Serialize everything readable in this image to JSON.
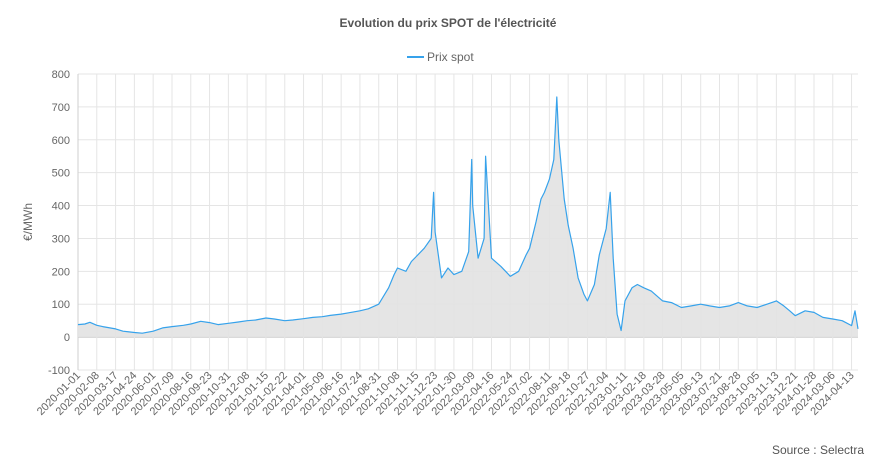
{
  "chart_data": {
    "type": "area",
    "title": "Evolution du prix SPOT de l'électricité",
    "ylabel": "€/MWh",
    "xlabel": "",
    "ylim": [
      -100,
      800
    ],
    "yticks": [
      -100,
      0,
      100,
      200,
      300,
      400,
      500,
      600,
      700,
      800
    ],
    "grid": true,
    "legend": "top-center",
    "source": "Source : Selectra",
    "xlim": [
      "2020-01-01",
      "2024-04-26"
    ],
    "x_tick_labels": [
      "2020-01-01",
      "2020-02-08",
      "2020-03-17",
      "2020-04-24",
      "2020-06-01",
      "2020-07-09",
      "2020-08-16",
      "2020-09-23",
      "2020-10-31",
      "2020-12-08",
      "2021-01-15",
      "2021-02-22",
      "2021-04-01",
      "2021-05-09",
      "2021-06-16",
      "2021-07-24",
      "2021-08-31",
      "2021-10-08",
      "2021-11-15",
      "2021-12-23",
      "2022-01-30",
      "2022-03-09",
      "2022-04-16",
      "2022-05-24",
      "2022-07-02",
      "2022-08-11",
      "2022-09-18",
      "2022-10-27",
      "2022-12-04",
      "2023-01-11",
      "2023-02-18",
      "2023-03-28",
      "2023-05-05",
      "2023-06-13",
      "2023-07-21",
      "2023-08-28",
      "2023-10-05",
      "2023-11-13",
      "2023-12-21",
      "2024-01-28",
      "2024-03-06",
      "2024-04-13"
    ],
    "series": [
      {
        "name": "Prix spot",
        "color": "#36a2eb",
        "fill": "#e2e2e2",
        "points": [
          [
            "2020-01-01",
            38
          ],
          [
            "2020-01-15",
            40
          ],
          [
            "2020-01-25",
            45
          ],
          [
            "2020-02-08",
            36
          ],
          [
            "2020-02-20",
            32
          ],
          [
            "2020-03-17",
            25
          ],
          [
            "2020-04-01",
            18
          ],
          [
            "2020-04-24",
            14
          ],
          [
            "2020-05-10",
            12
          ],
          [
            "2020-06-01",
            18
          ],
          [
            "2020-06-20",
            28
          ],
          [
            "2020-07-09",
            32
          ],
          [
            "2020-08-01",
            36
          ],
          [
            "2020-08-16",
            40
          ],
          [
            "2020-09-05",
            48
          ],
          [
            "2020-09-23",
            44
          ],
          [
            "2020-10-10",
            38
          ],
          [
            "2020-10-31",
            42
          ],
          [
            "2020-11-20",
            46
          ],
          [
            "2020-12-08",
            50
          ],
          [
            "2020-12-25",
            52
          ],
          [
            "2021-01-15",
            58
          ],
          [
            "2021-02-01",
            55
          ],
          [
            "2021-02-22",
            50
          ],
          [
            "2021-03-10",
            52
          ],
          [
            "2021-04-01",
            56
          ],
          [
            "2021-04-20",
            60
          ],
          [
            "2021-05-09",
            62
          ],
          [
            "2021-05-25",
            66
          ],
          [
            "2021-06-16",
            70
          ],
          [
            "2021-07-01",
            74
          ],
          [
            "2021-07-24",
            80
          ],
          [
            "2021-08-10",
            86
          ],
          [
            "2021-08-31",
            100
          ],
          [
            "2021-09-20",
            150
          ],
          [
            "2021-10-01",
            190
          ],
          [
            "2021-10-08",
            210
          ],
          [
            "2021-10-25",
            200
          ],
          [
            "2021-11-05",
            230
          ],
          [
            "2021-11-15",
            245
          ],
          [
            "2021-12-01",
            270
          ],
          [
            "2021-12-15",
            300
          ],
          [
            "2021-12-20",
            440
          ],
          [
            "2021-12-23",
            320
          ],
          [
            "2022-01-05",
            180
          ],
          [
            "2022-01-18",
            210
          ],
          [
            "2022-01-30",
            190
          ],
          [
            "2022-02-15",
            200
          ],
          [
            "2022-03-01",
            260
          ],
          [
            "2022-03-07",
            540
          ],
          [
            "2022-03-09",
            400
          ],
          [
            "2022-03-20",
            240
          ],
          [
            "2022-04-01",
            300
          ],
          [
            "2022-04-04",
            550
          ],
          [
            "2022-04-16",
            240
          ],
          [
            "2022-05-05",
            215
          ],
          [
            "2022-05-24",
            185
          ],
          [
            "2022-06-10",
            200
          ],
          [
            "2022-06-25",
            250
          ],
          [
            "2022-07-02",
            270
          ],
          [
            "2022-07-15",
            350
          ],
          [
            "2022-07-25",
            420
          ],
          [
            "2022-08-01",
            440
          ],
          [
            "2022-08-11",
            480
          ],
          [
            "2022-08-20",
            540
          ],
          [
            "2022-08-26",
            730
          ],
          [
            "2022-08-30",
            600
          ],
          [
            "2022-09-10",
            420
          ],
          [
            "2022-09-18",
            340
          ],
          [
            "2022-09-28",
            270
          ],
          [
            "2022-10-08",
            180
          ],
          [
            "2022-10-20",
            130
          ],
          [
            "2022-10-27",
            110
          ],
          [
            "2022-11-10",
            160
          ],
          [
            "2022-11-20",
            250
          ],
          [
            "2022-12-04",
            330
          ],
          [
            "2022-12-12",
            440
          ],
          [
            "2022-12-18",
            240
          ],
          [
            "2022-12-26",
            70
          ],
          [
            "2023-01-03",
            20
          ],
          [
            "2023-01-11",
            110
          ],
          [
            "2023-01-25",
            150
          ],
          [
            "2023-02-05",
            160
          ],
          [
            "2023-02-18",
            150
          ],
          [
            "2023-03-05",
            140
          ],
          [
            "2023-03-28",
            110
          ],
          [
            "2023-04-15",
            105
          ],
          [
            "2023-05-05",
            90
          ],
          [
            "2023-05-25",
            95
          ],
          [
            "2023-06-13",
            100
          ],
          [
            "2023-07-01",
            95
          ],
          [
            "2023-07-21",
            90
          ],
          [
            "2023-08-10",
            95
          ],
          [
            "2023-08-28",
            105
          ],
          [
            "2023-09-15",
            95
          ],
          [
            "2023-10-05",
            90
          ],
          [
            "2023-10-25",
            100
          ],
          [
            "2023-11-13",
            110
          ],
          [
            "2023-11-28",
            95
          ],
          [
            "2023-12-10",
            80
          ],
          [
            "2023-12-21",
            65
          ],
          [
            "2024-01-10",
            80
          ],
          [
            "2024-01-28",
            75
          ],
          [
            "2024-02-15",
            60
          ],
          [
            "2024-03-06",
            55
          ],
          [
            "2024-03-25",
            50
          ],
          [
            "2024-04-13",
            35
          ],
          [
            "2024-04-20",
            80
          ],
          [
            "2024-04-26",
            25
          ]
        ]
      }
    ]
  }
}
